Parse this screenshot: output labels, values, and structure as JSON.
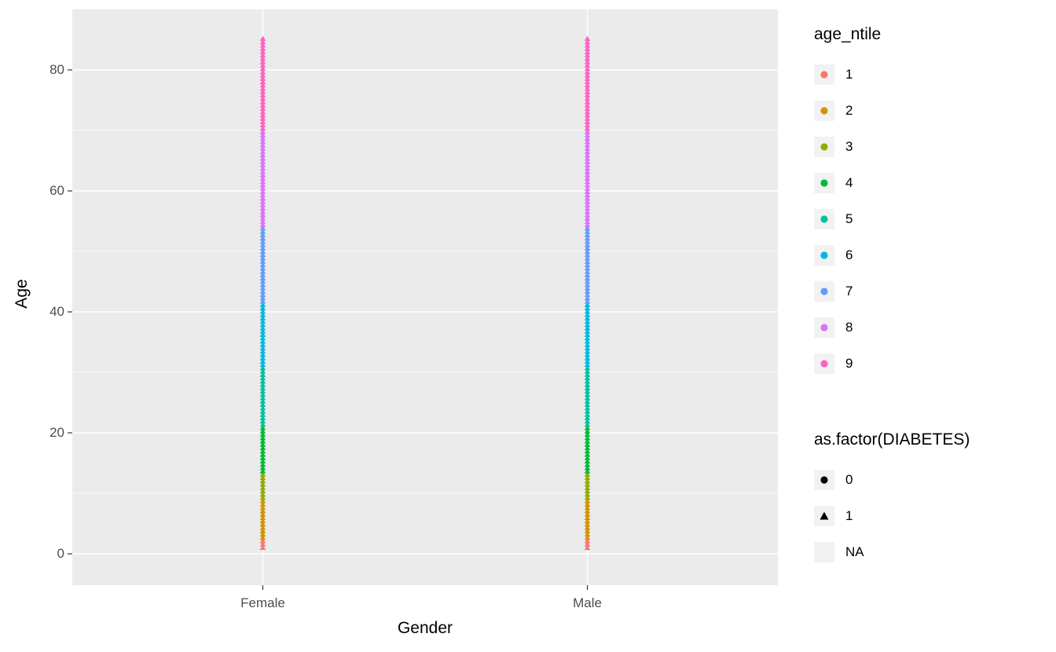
{
  "chart_data": {
    "type": "scatter",
    "title": "",
    "xlabel": "Gender",
    "ylabel": "Age",
    "categories": [
      "Female",
      "Male"
    ],
    "y_major_ticks": [
      0,
      20,
      40,
      60,
      80
    ],
    "y_minor_ticks": [
      10,
      30,
      50,
      70
    ],
    "ylim": [
      -5,
      90
    ],
    "points": {
      "description": "dense vertical stack of small triangle markers per gender category, colored by age_ntile decile of Age",
      "age_min": 1,
      "age_max": 85.5,
      "age_step": 0.55,
      "marker": "triangle"
    },
    "ntile_upper_breaks": [
      2.5,
      9,
      13.5,
      21,
      31,
      41.5,
      54,
      70,
      86
    ],
    "ntile_colors": [
      "#F8766D",
      "#D39200",
      "#93AA00",
      "#00BA38",
      "#00C19F",
      "#00B9E3",
      "#619CFF",
      "#DB72FB",
      "#FF61C3"
    ],
    "legend_color": {
      "title": "age_ntile",
      "entries": [
        {
          "label": "1",
          "color": "#F8766D",
          "marker": "circle"
        },
        {
          "label": "2",
          "color": "#D39200",
          "marker": "circle"
        },
        {
          "label": "3",
          "color": "#93AA00",
          "marker": "circle"
        },
        {
          "label": "4",
          "color": "#00BA38",
          "marker": "circle"
        },
        {
          "label": "5",
          "color": "#00C19F",
          "marker": "circle"
        },
        {
          "label": "6",
          "color": "#00B9E3",
          "marker": "circle"
        },
        {
          "label": "7",
          "color": "#619CFF",
          "marker": "circle"
        },
        {
          "label": "8",
          "color": "#DB72FB",
          "marker": "circle"
        },
        {
          "label": "9",
          "color": "#FF61C3",
          "marker": "circle"
        }
      ]
    },
    "legend_shape": {
      "title": "as.factor(DIABETES)",
      "entries": [
        {
          "label": "0",
          "color": "#000000",
          "marker": "circle"
        },
        {
          "label": "1",
          "color": "#000000",
          "marker": "triangle"
        },
        {
          "label": "NA",
          "color": "#000000",
          "marker": "none"
        }
      ]
    },
    "panel": {
      "background": "#EBEBEB",
      "grid_color": "#FFFFFF",
      "tick_mark_color": "#333333",
      "tick_label_color": "#4D4D4D",
      "text_color": "#000000"
    }
  }
}
